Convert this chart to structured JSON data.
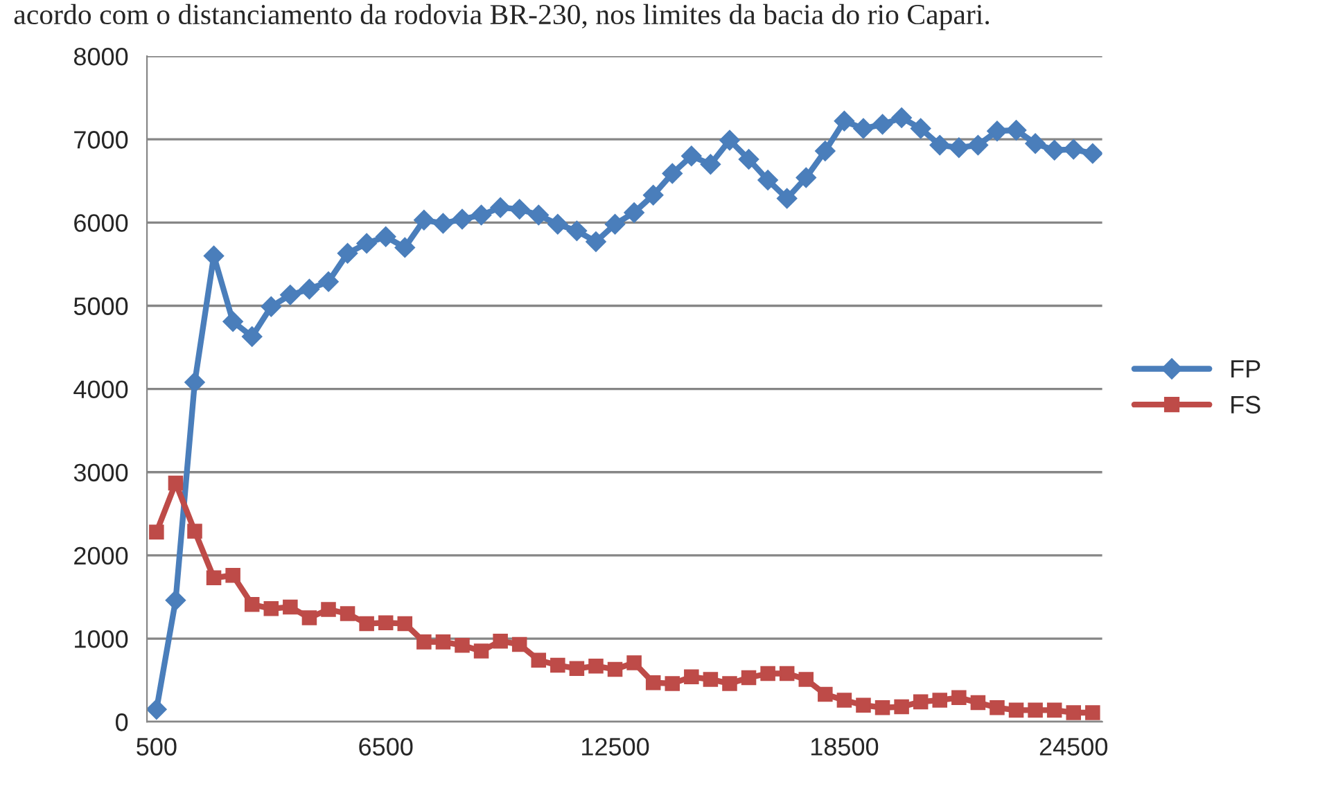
{
  "chart_data": {
    "type": "line",
    "annotations": [
      "acordo com o distanciamento da rodovia BR-230, nos limites da bacia do rio Capari."
    ],
    "categories": [
      "500",
      null,
      null,
      null,
      null,
      null,
      null,
      null,
      null,
      null,
      null,
      null,
      "6500",
      null,
      null,
      null,
      null,
      null,
      null,
      null,
      null,
      null,
      null,
      null,
      "12500",
      null,
      null,
      null,
      null,
      null,
      null,
      null,
      null,
      null,
      null,
      null,
      "18500",
      null,
      null,
      null,
      null,
      null,
      null,
      null,
      null,
      null,
      null,
      null,
      "24500",
      null
    ],
    "series": [
      {
        "name": "FP",
        "color": "#4a7ebb",
        "marker": "diamond",
        "values": [
          150,
          1460,
          4080,
          5600,
          4810,
          4630,
          4990,
          5130,
          5200,
          5290,
          5630,
          5750,
          5830,
          5700,
          6030,
          5990,
          6040,
          6090,
          6180,
          6160,
          6090,
          5980,
          5900,
          5770,
          5980,
          6120,
          6330,
          6590,
          6800,
          6700,
          6990,
          6760,
          6510,
          6290,
          6540,
          6860,
          7220,
          7130,
          7180,
          7260,
          7130,
          6930,
          6900,
          6930,
          7100,
          7110,
          6950,
          6870,
          6880,
          6830
        ]
      },
      {
        "name": "FS",
        "color": "#be4b48",
        "marker": "square",
        "values": [
          2280,
          2870,
          2290,
          1730,
          1760,
          1410,
          1360,
          1380,
          1250,
          1350,
          1300,
          1180,
          1190,
          1180,
          960,
          960,
          920,
          850,
          970,
          930,
          740,
          680,
          640,
          670,
          630,
          710,
          470,
          460,
          540,
          510,
          460,
          530,
          580,
          580,
          510,
          330,
          260,
          200,
          170,
          180,
          240,
          260,
          290,
          230,
          170,
          140,
          140,
          140,
          110,
          110
        ]
      }
    ],
    "ylim": [
      0,
      8000
    ],
    "yticks": [
      0,
      1000,
      2000,
      3000,
      4000,
      5000,
      6000,
      7000,
      8000
    ],
    "grid": "y",
    "legend": "right",
    "line_style": "solid"
  }
}
